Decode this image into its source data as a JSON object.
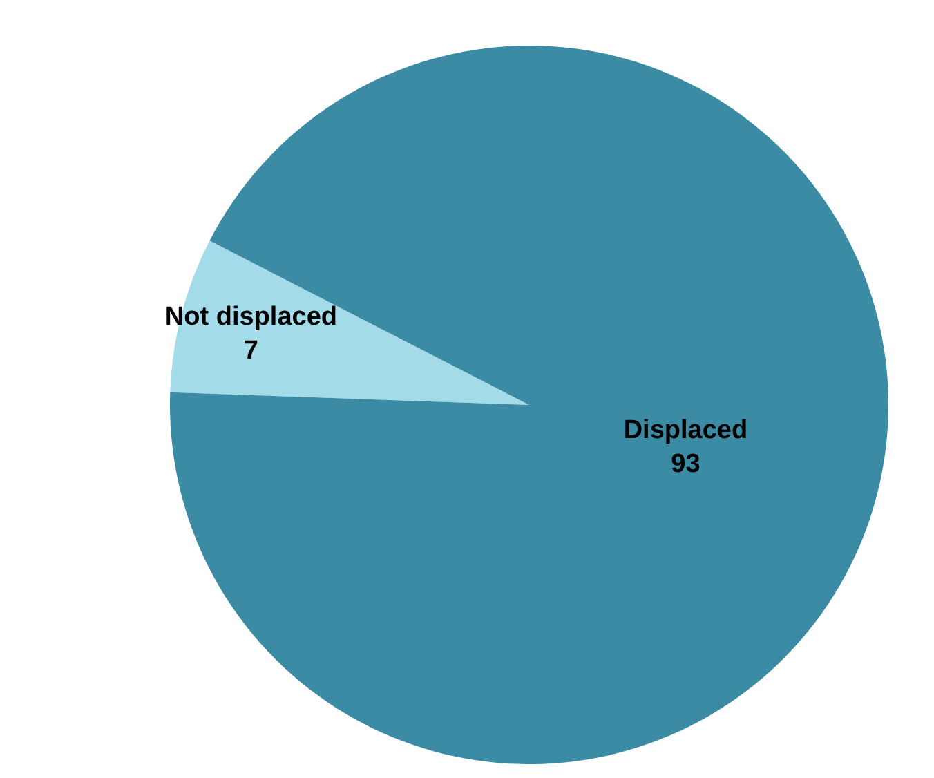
{
  "chart_data": {
    "type": "pie",
    "categories": [
      "Not displaced",
      "Displaced"
    ],
    "values": [
      7,
      93
    ],
    "colors": [
      "#a3dbe8",
      "#3a8ba3"
    ],
    "data_labels": true,
    "legend": false
  }
}
